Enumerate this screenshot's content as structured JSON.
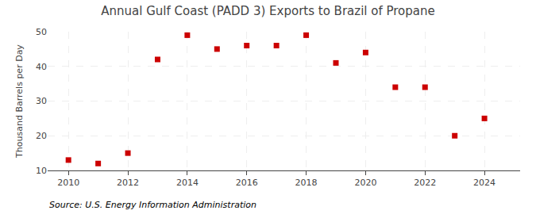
{
  "chart_data": {
    "type": "scatter",
    "title": "Annual Gulf Coast (PADD 3) Exports to Brazil of Propane",
    "ylabel": "Thousand Barrels per Day",
    "annotations": [
      "Source: U.S. Energy Information Administration"
    ],
    "x": [
      2010,
      2011,
      2012,
      2013,
      2014,
      2015,
      2016,
      2017,
      2018,
      2019,
      2020,
      2021,
      2022,
      2023,
      2024
    ],
    "values": [
      13,
      12,
      15,
      42,
      49,
      45,
      46,
      46,
      49,
      41,
      44,
      34,
      34,
      20,
      25
    ],
    "color": "#cc0000",
    "marker": "square",
    "xlim": [
      2009.3,
      2025.2
    ],
    "xticks": [
      2010,
      2012,
      2014,
      2016,
      2018,
      2020,
      2022,
      2024
    ],
    "ylim": [
      10,
      50
    ],
    "yticks": [
      10,
      20,
      30,
      40,
      50
    ],
    "grid": true
  }
}
